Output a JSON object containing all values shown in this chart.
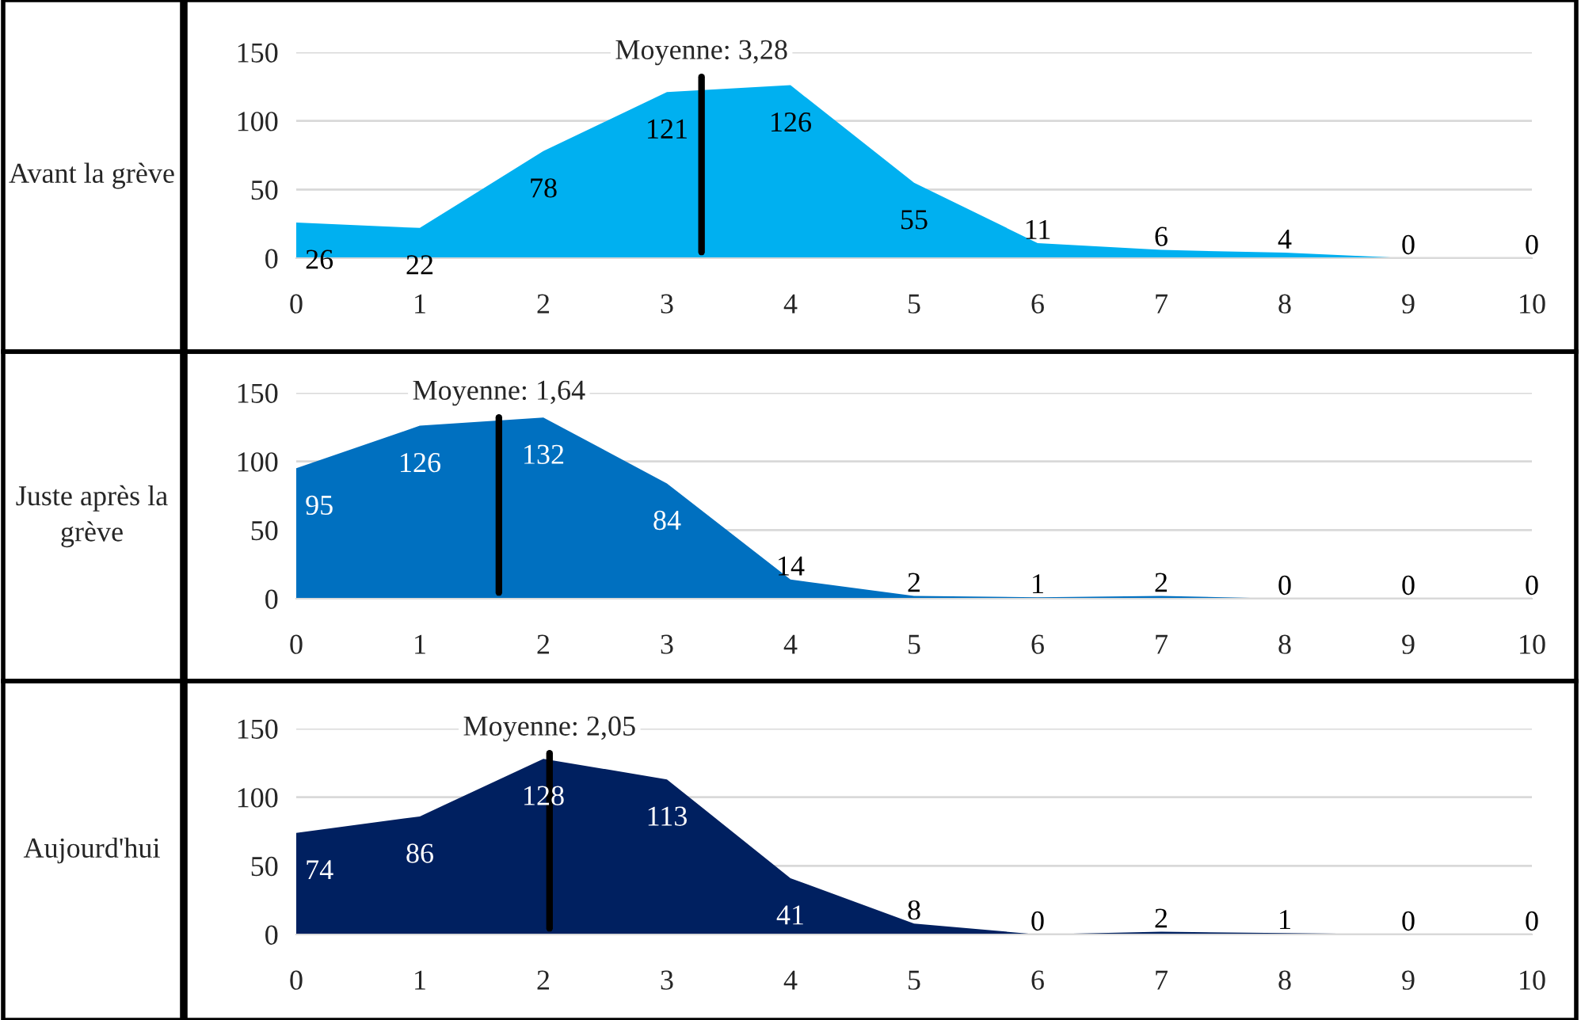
{
  "chart_data": [
    {
      "type": "area",
      "title": "Avant la grève",
      "x": [
        0,
        1,
        2,
        3,
        4,
        5,
        6,
        7,
        8,
        9,
        10
      ],
      "xlim": [
        0,
        10
      ],
      "xticks": [
        0,
        1,
        2,
        3,
        4,
        5,
        6,
        7,
        8,
        9,
        10
      ],
      "ylim": [
        0,
        150
      ],
      "yticks": [
        0,
        50,
        100,
        150
      ],
      "grid": "y",
      "data_labels": true,
      "series": [
        {
          "color": "#00b0f0",
          "values": [
            26,
            22,
            78,
            121,
            126,
            55,
            11,
            6,
            4,
            0,
            0
          ]
        }
      ],
      "ref_lines": [
        {
          "axis": "x",
          "value": 3.28,
          "label": "Moyenne: 3,28",
          "color": "#000000"
        }
      ]
    },
    {
      "type": "area",
      "title": "Juste après la grève",
      "x": [
        0,
        1,
        2,
        3,
        4,
        5,
        6,
        7,
        8,
        9,
        10
      ],
      "xlim": [
        0,
        10
      ],
      "xticks": [
        0,
        1,
        2,
        3,
        4,
        5,
        6,
        7,
        8,
        9,
        10
      ],
      "ylim": [
        0,
        150
      ],
      "yticks": [
        0,
        50,
        100,
        150
      ],
      "grid": "y",
      "data_labels": true,
      "series": [
        {
          "color": "#0070c0",
          "values": [
            95,
            126,
            132,
            84,
            14,
            2,
            1,
            2,
            0,
            0,
            0
          ]
        }
      ],
      "ref_lines": [
        {
          "axis": "x",
          "value": 1.64,
          "label": "Moyenne: 1,64",
          "color": "#000000"
        }
      ]
    },
    {
      "type": "area",
      "title": "Aujourd'hui",
      "x": [
        0,
        1,
        2,
        3,
        4,
        5,
        6,
        7,
        8,
        9,
        10
      ],
      "xlim": [
        0,
        10
      ],
      "xticks": [
        0,
        1,
        2,
        3,
        4,
        5,
        6,
        7,
        8,
        9,
        10
      ],
      "ylim": [
        0,
        150
      ],
      "yticks": [
        0,
        50,
        100,
        150
      ],
      "grid": "y",
      "data_labels": true,
      "series": [
        {
          "color": "#002060",
          "values": [
            74,
            86,
            128,
            113,
            41,
            8,
            0,
            2,
            1,
            0,
            0
          ]
        }
      ],
      "ref_lines": [
        {
          "axis": "x",
          "value": 2.05,
          "label": "Moyenne: 2,05",
          "color": "#000000"
        }
      ]
    }
  ]
}
